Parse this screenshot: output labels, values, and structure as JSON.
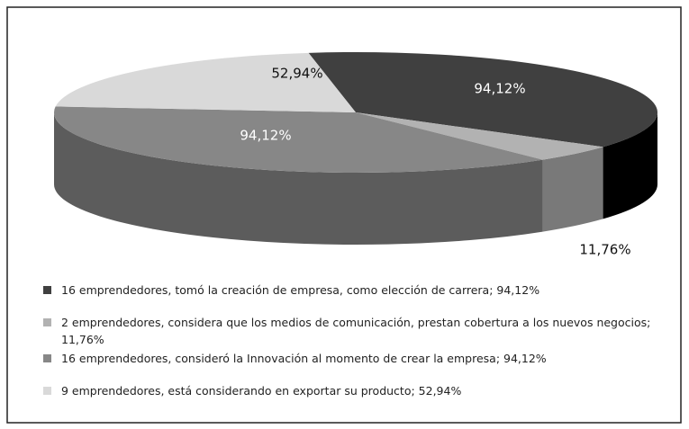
{
  "chart_data": {
    "type": "pie3d",
    "categories": [
      "16 emprendedores, tomó la creación de empresa, como elección de carrera; 94,12%",
      "2 emprendedores, considera que los medios de comunicación, prestan cobertura a los nuevos negocios; 11,76%",
      "16 emprendedores, consideró la Innovación al momento de crear la empresa; 94,12%",
      "9 emprendedores, está considerando en exportar su producto; 52,94%"
    ],
    "values": [
      94.12,
      11.76,
      94.12,
      52.94
    ],
    "value_labels": [
      "94,12%",
      "11,76%",
      "94,12%",
      "52,94%"
    ],
    "colors": [
      "#404040",
      "#b2b2b2",
      "#878787",
      "#d9d9d9"
    ],
    "legend": "bottom"
  }
}
